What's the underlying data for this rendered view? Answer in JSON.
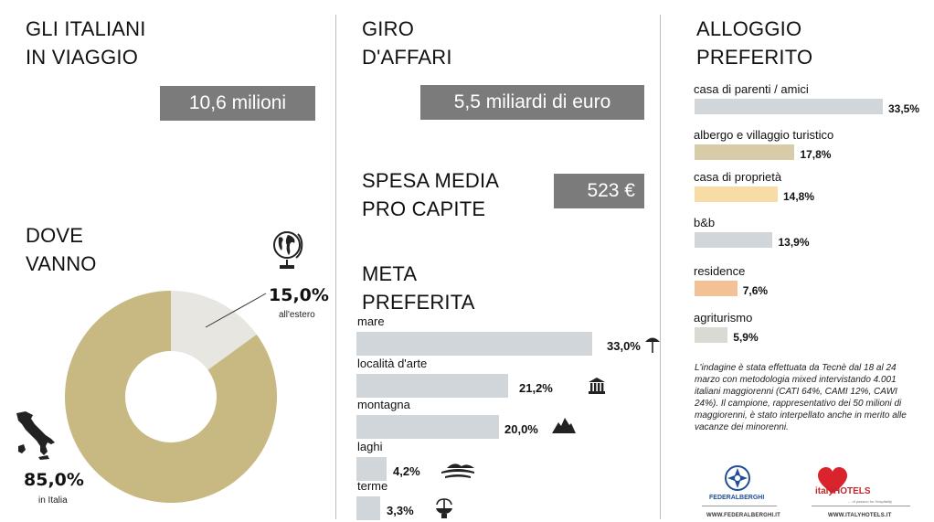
{
  "left": {
    "title_line1": "GLI ITALIANI",
    "title_line2": "IN VIAGGIO",
    "travelers": "10,6 milioni",
    "where_line1": "DOVE",
    "where_line2": "VANNO",
    "abroad_pct": "15,0%",
    "abroad_label": "all'estero",
    "italy_pct": "85,0%",
    "italy_label": "in Italia"
  },
  "middle": {
    "turnover_line1": "GIRO",
    "turnover_line2": "D'AFFARI",
    "turnover_value": "5,5 miliardi di euro",
    "spend_line1": "SPESA MEDIA",
    "spend_line2": "PRO CAPITE",
    "spend_value": "523 €",
    "dest_line1": "META",
    "dest_line2": "PREFERITA"
  },
  "right": {
    "title_line1": "ALLOGGIO",
    "title_line2": "PREFERITO",
    "note": "L'indagine è stata effettuata da Tecnè dal 18 al 24 marzo con metodologia mixed intervistando 4.001 italiani maggiorenni (CATI 64%, CAMI 12%, CAWI 24%). Il campione, rappresentativo dei 50 milioni di maggiorenni, è stato interpellato anche in merito alle vacanze dei minorenni.",
    "logo1_caption": "WWW.FEDERALBERGHI.IT",
    "logo1_name": "FEDERALBERGHI",
    "logo2_caption": "WWW.ITALYHOTELS.IT",
    "logo2_name": "italyHOTELS",
    "logo2_tag": "... of passion for Hospitality"
  },
  "chart_data": [
    {
      "type": "pie",
      "categories": [
        "in Italia",
        "all'estero"
      ],
      "values": [
        85.0,
        15.0
      ],
      "colors": [
        "#c8b983",
        "#e7e6e1"
      ]
    },
    {
      "type": "bar",
      "categories": [
        "mare",
        "località d'arte",
        "montagna",
        "laghi",
        "terme"
      ],
      "values": [
        33.0,
        21.2,
        20.0,
        4.2,
        3.3
      ],
      "labels": [
        "33,0%",
        "21,2%",
        "20,0%",
        "4,2%",
        "3,3%"
      ],
      "icons": [
        "umbrella-icon",
        "temple-icon",
        "mountain-icon",
        "lake-icon",
        "fountain-icon"
      ],
      "color": "#d1d6db"
    },
    {
      "type": "bar",
      "categories": [
        "casa di parenti / amici",
        "albergo e villaggio turistico",
        "casa di proprietà",
        "b&b",
        "residence",
        "agriturismo"
      ],
      "values": [
        33.5,
        17.8,
        14.8,
        13.9,
        7.6,
        5.9
      ],
      "labels": [
        "33,5%",
        "17,8%",
        "14,8%",
        "13,9%",
        "7,6%",
        "5,9%"
      ],
      "colors": [
        "#d1d6db",
        "#d8cca8",
        "#f7dca5",
        "#d1d6db",
        "#f4c096",
        "#dadad5"
      ]
    }
  ]
}
